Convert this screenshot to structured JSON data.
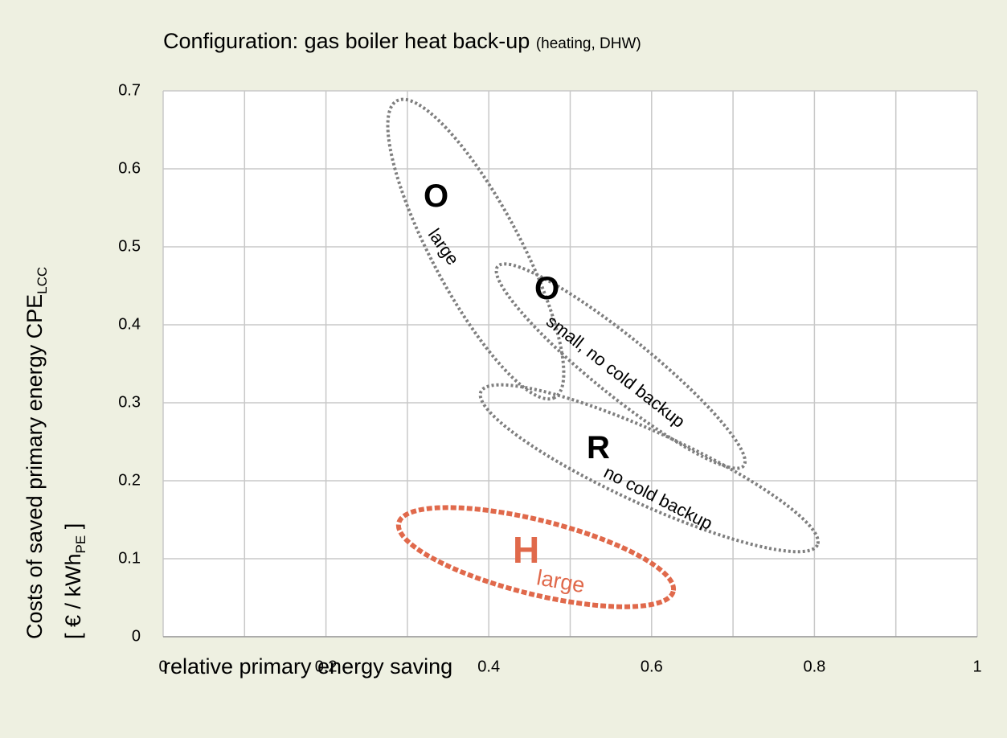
{
  "chart_data": {
    "type": "region",
    "title": [
      "Configuration: gas boiler heat back-up",
      "(heating, DHW)"
    ],
    "xlabel": "relative primary energy saving",
    "ylabel": [
      "Costs of saved primary energy CPE",
      "LCC"
    ],
    "ylabel2": [
      "[ € / kWh",
      "PE",
      " ]"
    ],
    "xlim": [
      0,
      1
    ],
    "ylim": [
      0,
      0.7
    ],
    "xticks": [
      0,
      0.2,
      0.4,
      0.6,
      0.8,
      1
    ],
    "xgrid_minor": [
      0.1,
      0.3,
      0.5,
      0.7,
      0.9
    ],
    "yticks": [
      0,
      0.1,
      0.2,
      0.3,
      0.4,
      0.5,
      0.6,
      0.7
    ],
    "grid": true,
    "regions": [
      {
        "letter": "O",
        "label": "large",
        "x": 0.384,
        "y": 0.497,
        "color": "#7f7f7f"
      },
      {
        "letter": "O",
        "label": "small,  no cold backup",
        "x": 0.562,
        "y": 0.347,
        "color": "#7f7f7f"
      },
      {
        "letter": "R",
        "label": "no cold backup",
        "x": 0.597,
        "y": 0.216,
        "color": "#7f7f7f"
      },
      {
        "letter": "H",
        "label": "large",
        "x": 0.458,
        "y": 0.102,
        "color": "#e0694b"
      }
    ]
  }
}
